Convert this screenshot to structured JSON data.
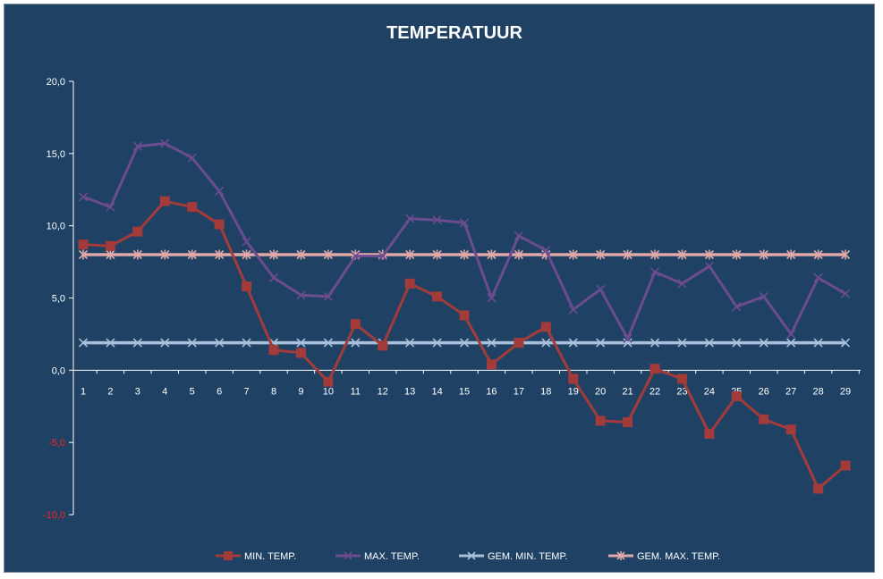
{
  "chart_data": {
    "type": "line",
    "title": "TEMPERATUUR",
    "xlabel": "",
    "ylabel": "",
    "x": [
      1,
      2,
      3,
      4,
      5,
      6,
      7,
      8,
      9,
      10,
      11,
      12,
      13,
      14,
      15,
      16,
      17,
      18,
      19,
      20,
      21,
      22,
      23,
      24,
      25,
      26,
      27,
      28,
      29
    ],
    "ylim": [
      -10,
      20
    ],
    "yticks": [
      20,
      15,
      10,
      5,
      0,
      -5,
      -10
    ],
    "ytick_labels": [
      "20,0",
      "15,0",
      "10,0",
      "5,0",
      "0,0",
      "-5,0",
      "-10,0"
    ],
    "negative_tick_color": "#ff2020",
    "tick_color": "#ffffff",
    "background": "#1f4264",
    "grid": false,
    "legend_position": "bottom",
    "series": [
      {
        "name": "MIN. TEMP.",
        "color": "#a33b3b",
        "marker": "square",
        "values": [
          8.7,
          8.6,
          9.6,
          11.7,
          11.3,
          10.1,
          5.8,
          1.4,
          1.2,
          -0.8,
          3.2,
          1.7,
          6.0,
          5.1,
          3.8,
          0.4,
          1.9,
          3.0,
          -0.6,
          -3.5,
          -3.6,
          0.1,
          -0.6,
          -4.4,
          -1.8,
          -3.4,
          -4.1,
          -8.2,
          -6.6
        ]
      },
      {
        "name": "MAX. TEMP.",
        "color": "#6b4c8e",
        "marker": "x",
        "values": [
          12.0,
          11.3,
          15.5,
          15.7,
          14.7,
          12.4,
          8.9,
          6.4,
          5.2,
          5.1,
          7.9,
          7.9,
          10.5,
          10.4,
          10.2,
          5.0,
          9.3,
          8.3,
          4.2,
          5.6,
          2.2,
          6.8,
          6.0,
          7.2,
          4.4,
          5.1,
          2.5,
          6.4,
          5.3
        ]
      },
      {
        "name": "GEM. MIN. TEMP.",
        "color": "#a8c0dc",
        "marker": "x",
        "values": [
          1.9,
          1.9,
          1.9,
          1.9,
          1.9,
          1.9,
          1.9,
          1.9,
          1.9,
          1.9,
          1.9,
          1.9,
          1.9,
          1.9,
          1.9,
          1.9,
          1.9,
          1.9,
          1.9,
          1.9,
          1.9,
          1.9,
          1.9,
          1.9,
          1.9,
          1.9,
          1.9,
          1.9,
          1.9
        ]
      },
      {
        "name": "GEM. MAX. TEMP.",
        "color": "#e0a8a8",
        "marker": "asterisk",
        "values": [
          8.0,
          8.0,
          8.0,
          8.0,
          8.0,
          8.0,
          8.0,
          8.0,
          8.0,
          8.0,
          8.0,
          8.0,
          8.0,
          8.0,
          8.0,
          8.0,
          8.0,
          8.0,
          8.0,
          8.0,
          8.0,
          8.0,
          8.0,
          8.0,
          8.0,
          8.0,
          8.0,
          8.0,
          8.0
        ]
      }
    ]
  }
}
